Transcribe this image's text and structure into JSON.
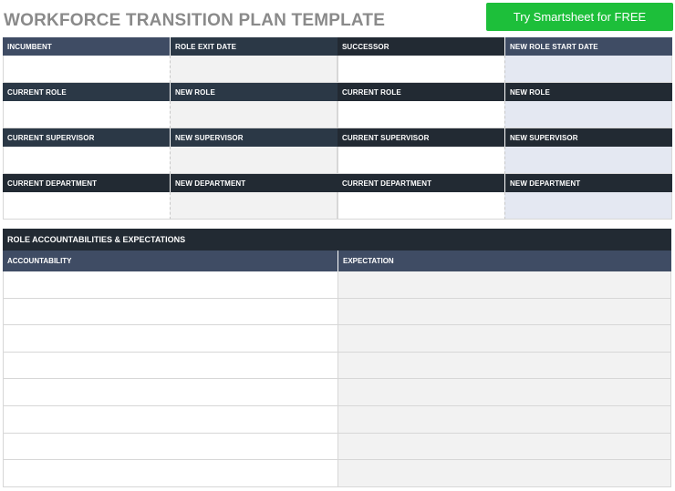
{
  "title": "WORKFORCE TRANSITION PLAN TEMPLATE",
  "cta_label": "Try Smartsheet for FREE",
  "left_block": {
    "rows": [
      {
        "a": "INCUMBENT",
        "b": "ROLE EXIT DATE"
      },
      {
        "a": "CURRENT ROLE",
        "b": "NEW ROLE"
      },
      {
        "a": "CURRENT SUPERVISOR",
        "b": "NEW SUPERVISOR"
      },
      {
        "a": "CURRENT DEPARTMENT",
        "b": "NEW DEPARTMENT"
      }
    ]
  },
  "right_block": {
    "rows": [
      {
        "a": "SUCCESSOR",
        "b": "NEW ROLE START DATE"
      },
      {
        "a": "CURRENT ROLE",
        "b": "NEW ROLE"
      },
      {
        "a": "CURRENT SUPERVISOR",
        "b": "NEW SUPERVISOR"
      },
      {
        "a": "CURRENT DEPARTMENT",
        "b": "NEW DEPARTMENT"
      }
    ]
  },
  "accountabilities": {
    "title": "ROLE ACCOUNTABILITIES & EXPECTATIONS",
    "col1": "ACCOUNTABILITY",
    "col2": "EXPECTATION",
    "row_count": 8
  },
  "colors": {
    "cta": "#1dbf3a",
    "header_dark": "#2b3846",
    "header_slate": "#3f4c64",
    "header_black": "#222a33",
    "title_gray": "#8a8a8a",
    "cell_gray": "#f2f2f2",
    "cell_blue": "#e4e8f2"
  }
}
